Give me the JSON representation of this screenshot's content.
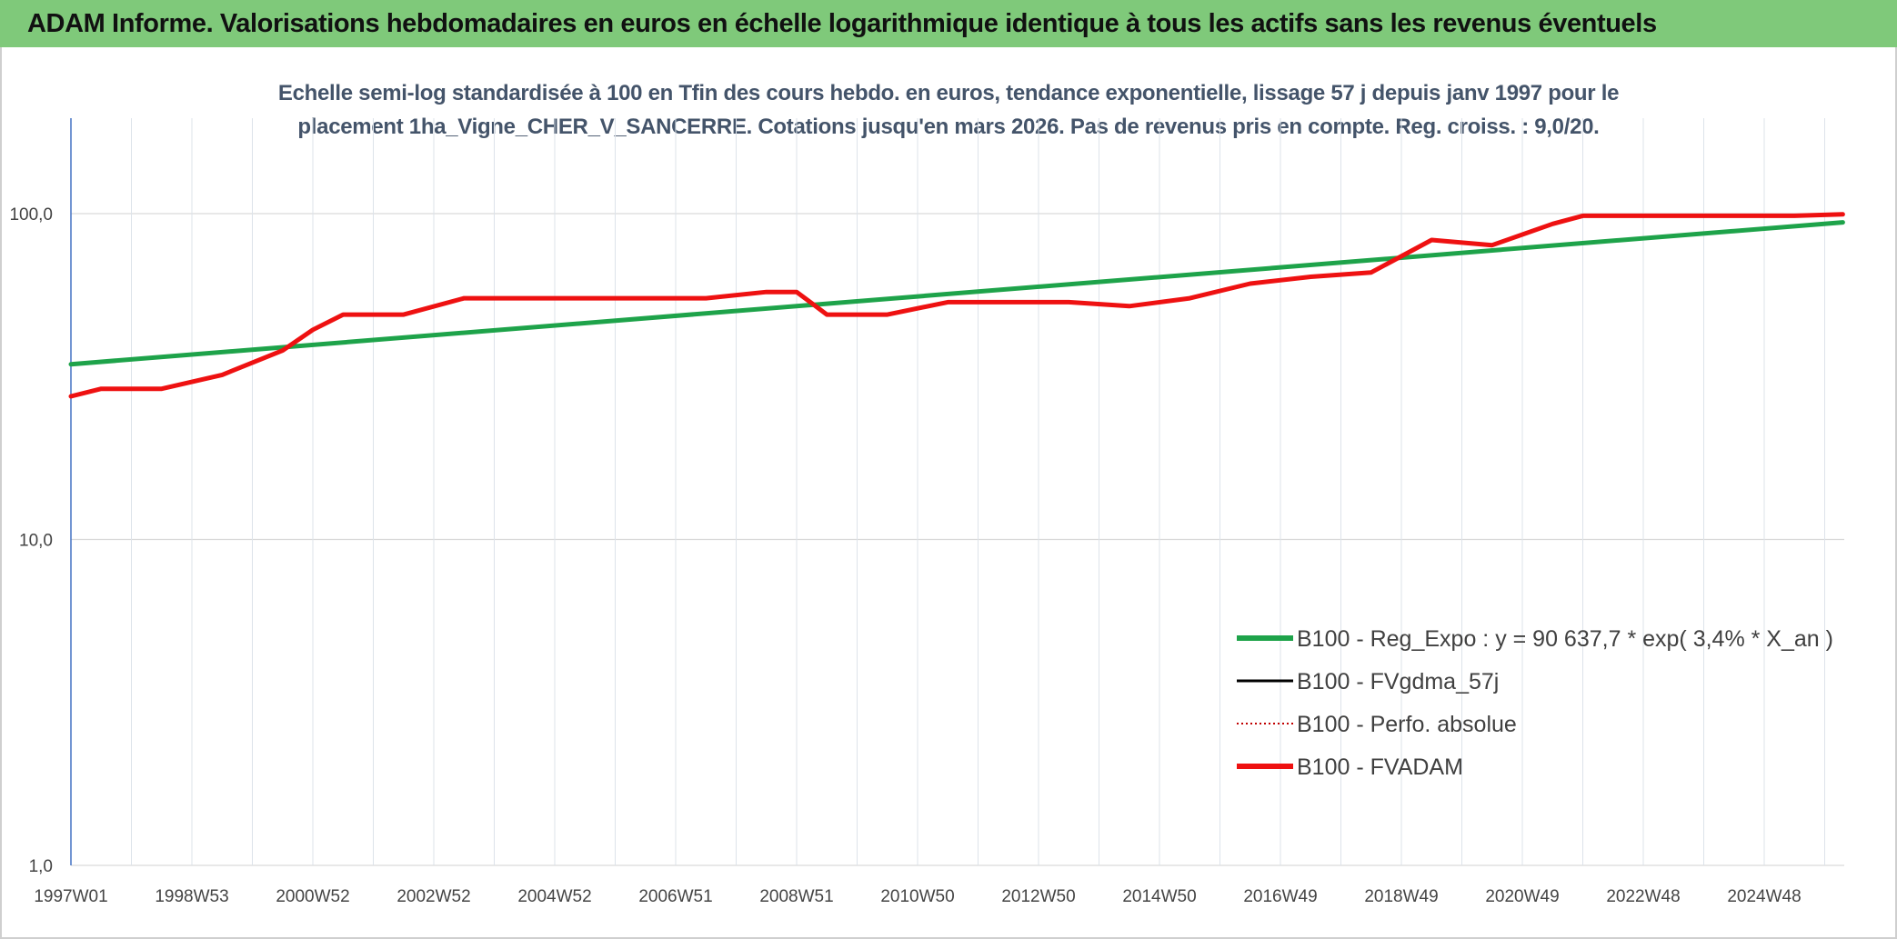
{
  "header": {
    "title": "ADAM Informe. Valorisations hebdomadaires en euros en échelle logarithmique identique à tous les actifs sans les revenus éventuels"
  },
  "chart_data": {
    "type": "line",
    "title_line1": "Echelle semi-log standardisée à 100 en Tfin des cours hebdo. en euros, tendance exponentielle, lissage 57 j depuis janv 1997 pour le",
    "title_line2": "placement 1ha_Vigne_CHER_V_SANCERRE. Cotations jusqu'en mars 2026. Pas de revenus pris en compte. Reg. croiss. : 9,0/20.",
    "y_scale": "log",
    "ylim": [
      1,
      190
    ],
    "y_ticks": [
      {
        "value": 1,
        "label": "1,0"
      },
      {
        "value": 10,
        "label": "10,0"
      },
      {
        "value": 100,
        "label": "100,0"
      }
    ],
    "xlim": [
      1997.0,
      2026.3
    ],
    "x_ticks": [
      {
        "year": 1997.0,
        "label": "1997W01"
      },
      {
        "year": 1999.0,
        "label": "1998W53"
      },
      {
        "year": 2001.0,
        "label": "2000W52"
      },
      {
        "year": 2003.0,
        "label": "2002W52"
      },
      {
        "year": 2005.0,
        "label": "2004W52"
      },
      {
        "year": 2007.0,
        "label": "2006W51"
      },
      {
        "year": 2009.0,
        "label": "2008W51"
      },
      {
        "year": 2011.0,
        "label": "2010W50"
      },
      {
        "year": 2013.0,
        "label": "2012W50"
      },
      {
        "year": 2015.0,
        "label": "2014W50"
      },
      {
        "year": 2017.0,
        "label": "2016W49"
      },
      {
        "year": 2019.0,
        "label": "2018W49"
      },
      {
        "year": 2021.0,
        "label": "2020W49"
      },
      {
        "year": 2023.0,
        "label": "2022W48"
      },
      {
        "year": 2025.0,
        "label": "2024W48"
      }
    ],
    "grid": "vertical",
    "legend_position": "bottom-right",
    "series": [
      {
        "name": "B100 - Reg_Expo : y = 90 637,7 * exp( 3,4% *  X_an )",
        "color": "#1ea34a",
        "style": "solid",
        "x": [
          1997.0,
          2026.3
        ],
        "values": [
          34.5,
          94.0
        ]
      },
      {
        "name": "B100 - FVgdma_57j",
        "color": "#000000",
        "style": "solid",
        "x": [],
        "values": []
      },
      {
        "name": "B100 - Perfo. absolue",
        "color": "#c00000",
        "style": "dotted",
        "x": [],
        "values": []
      },
      {
        "name": "B100 - FVADAM",
        "color": "#ee1111",
        "style": "solid",
        "x": [
          1997.0,
          1997.5,
          1998.5,
          1999.5,
          2000.5,
          2001.0,
          2001.5,
          2002.5,
          2003.5,
          2004.5,
          2005.5,
          2006.5,
          2007.5,
          2008.5,
          2009.0,
          2009.5,
          2010.5,
          2011.5,
          2012.5,
          2013.5,
          2014.5,
          2015.5,
          2016.5,
          2017.5,
          2018.5,
          2019.5,
          2020.5,
          2021.5,
          2022.0,
          2022.5,
          2023.5,
          2024.5,
          2025.5,
          2026.3
        ],
        "values": [
          27.5,
          29.0,
          29.0,
          32.0,
          38.0,
          44.0,
          49.0,
          49.0,
          55.0,
          55.0,
          55.0,
          55.0,
          55.0,
          57.5,
          57.5,
          49.0,
          49.0,
          53.5,
          53.5,
          53.5,
          52.0,
          55.0,
          61.0,
          64.0,
          66.0,
          83.0,
          80.0,
          93.0,
          98.5,
          98.5,
          98.5,
          98.5,
          98.5,
          99.5
        ]
      }
    ]
  }
}
